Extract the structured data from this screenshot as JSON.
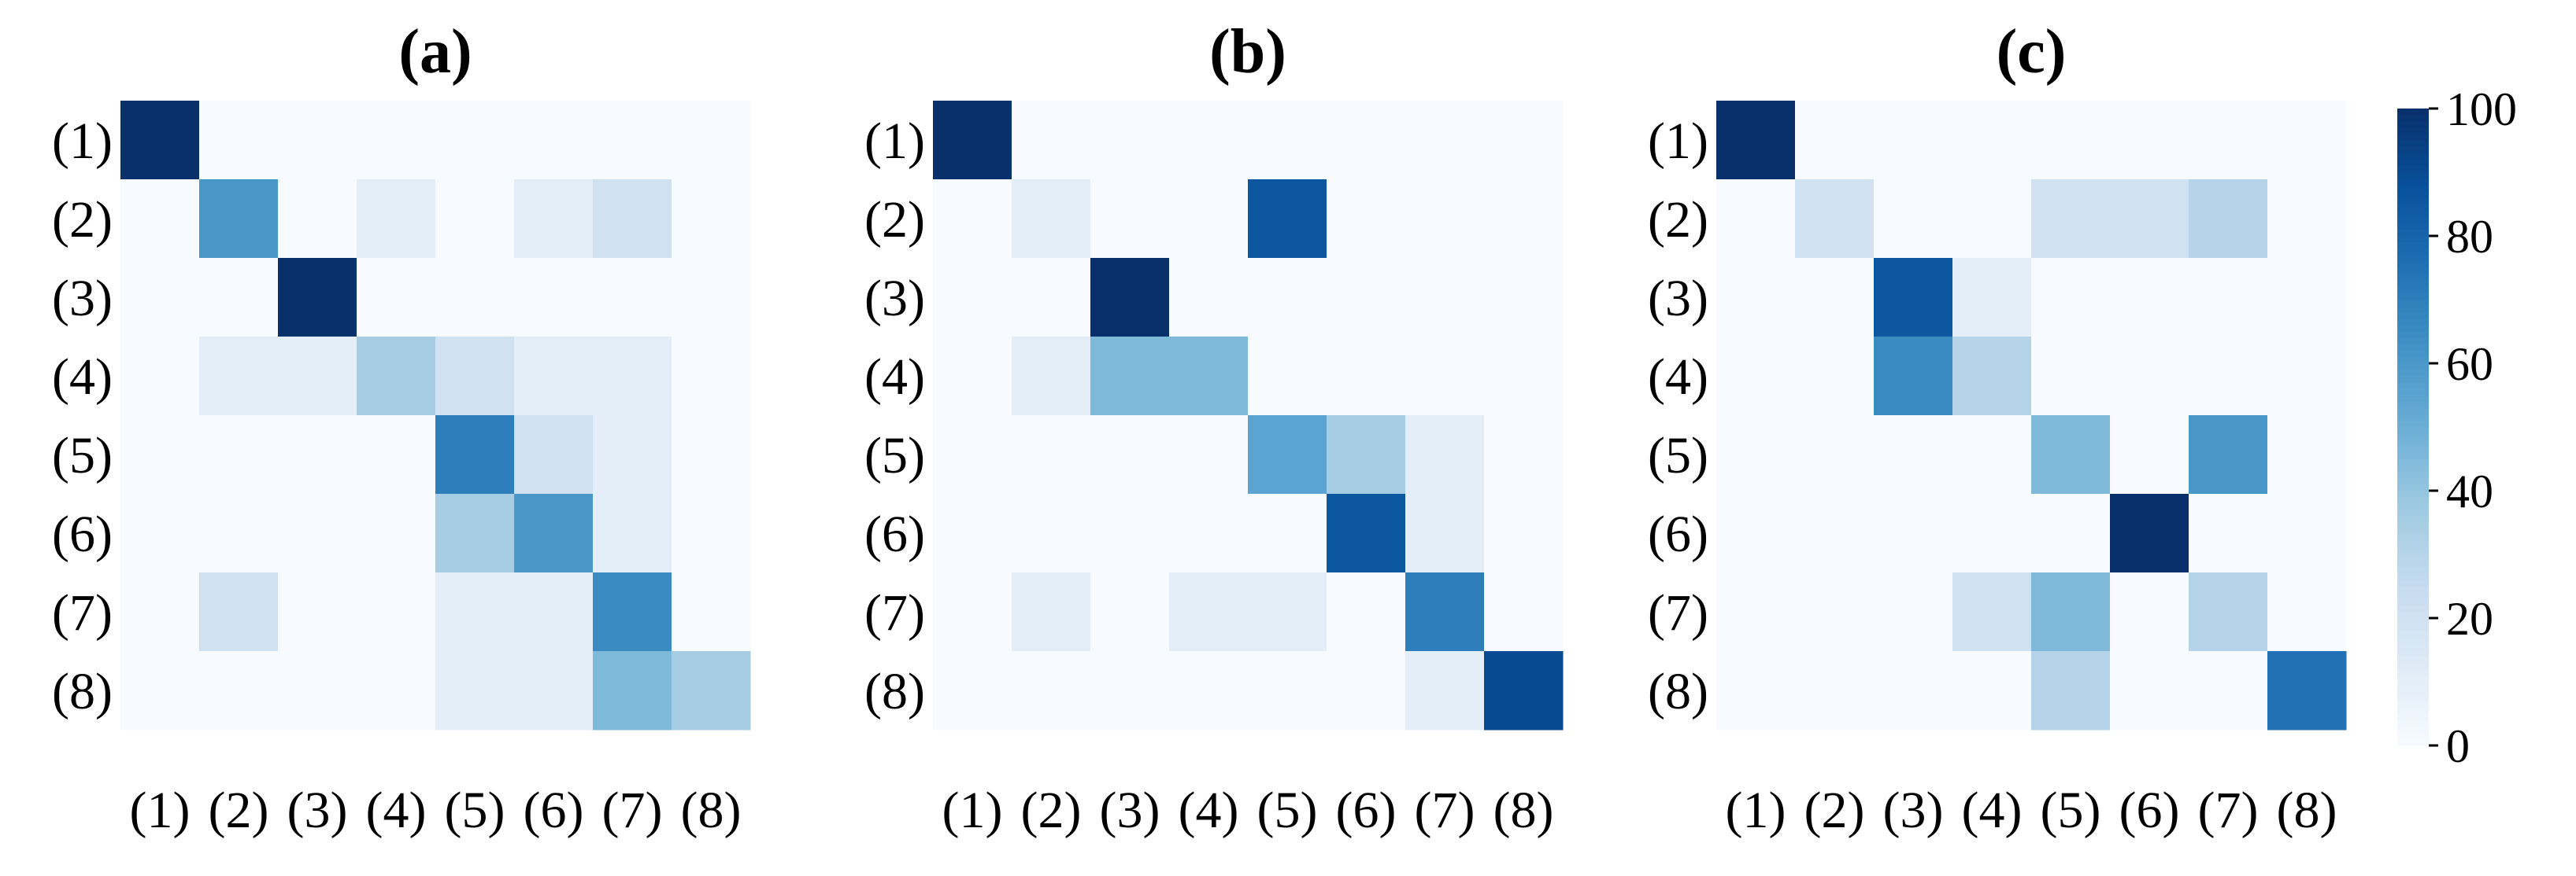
{
  "chart_data": [
    {
      "type": "heatmap",
      "title": "(a)",
      "x_categories": [
        "(1)",
        "(2)",
        "(3)",
        "(4)",
        "(5)",
        "(6)",
        "(7)",
        "(8)"
      ],
      "y_categories": [
        "(1)",
        "(2)",
        "(3)",
        "(4)",
        "(5)",
        "(6)",
        "(7)",
        "(8)"
      ],
      "values": [
        [
          100,
          0,
          0,
          0,
          0,
          0,
          0,
          0
        ],
        [
          0,
          60,
          0,
          10,
          0,
          10,
          20,
          0
        ],
        [
          0,
          0,
          100,
          0,
          0,
          0,
          0,
          0
        ],
        [
          0,
          10,
          10,
          35,
          20,
          10,
          10,
          0
        ],
        [
          0,
          0,
          0,
          0,
          70,
          20,
          10,
          0
        ],
        [
          0,
          0,
          0,
          0,
          35,
          60,
          10,
          0
        ],
        [
          0,
          20,
          0,
          0,
          10,
          10,
          65,
          0
        ],
        [
          0,
          0,
          0,
          0,
          10,
          10,
          45,
          35
        ]
      ],
      "vmin": 0,
      "vmax": 100,
      "colormap": "Blues"
    },
    {
      "type": "heatmap",
      "title": "(b)",
      "x_categories": [
        "(1)",
        "(2)",
        "(3)",
        "(4)",
        "(5)",
        "(6)",
        "(7)",
        "(8)"
      ],
      "y_categories": [
        "(1)",
        "(2)",
        "(3)",
        "(4)",
        "(5)",
        "(6)",
        "(7)",
        "(8)"
      ],
      "values": [
        [
          100,
          0,
          0,
          0,
          0,
          0,
          0,
          0
        ],
        [
          0,
          10,
          0,
          0,
          85,
          0,
          0,
          0
        ],
        [
          0,
          0,
          100,
          0,
          0,
          0,
          0,
          0
        ],
        [
          0,
          10,
          45,
          45,
          0,
          0,
          0,
          0
        ],
        [
          0,
          0,
          0,
          0,
          55,
          35,
          10,
          0
        ],
        [
          0,
          0,
          0,
          0,
          0,
          85,
          10,
          0
        ],
        [
          0,
          10,
          0,
          10,
          10,
          0,
          70,
          0
        ],
        [
          0,
          0,
          0,
          0,
          0,
          0,
          10,
          90
        ]
      ],
      "vmin": 0,
      "vmax": 100,
      "colormap": "Blues"
    },
    {
      "type": "heatmap",
      "title": "(c)",
      "x_categories": [
        "(1)",
        "(2)",
        "(3)",
        "(4)",
        "(5)",
        "(6)",
        "(7)",
        "(8)"
      ],
      "y_categories": [
        "(1)",
        "(2)",
        "(3)",
        "(4)",
        "(5)",
        "(6)",
        "(7)",
        "(8)"
      ],
      "values": [
        [
          100,
          0,
          0,
          0,
          0,
          0,
          0,
          0
        ],
        [
          0,
          20,
          0,
          0,
          20,
          20,
          30,
          0
        ],
        [
          0,
          0,
          85,
          10,
          0,
          0,
          0,
          0
        ],
        [
          0,
          0,
          65,
          30,
          0,
          0,
          0,
          0
        ],
        [
          0,
          0,
          0,
          0,
          45,
          0,
          60,
          0
        ],
        [
          0,
          0,
          0,
          0,
          0,
          100,
          0,
          0
        ],
        [
          0,
          0,
          0,
          20,
          45,
          0,
          30,
          0
        ],
        [
          0,
          0,
          0,
          0,
          30,
          0,
          0,
          75
        ]
      ],
      "vmin": 0,
      "vmax": 100,
      "colormap": "Blues"
    }
  ],
  "colorbar": {
    "ticks": [
      "0",
      "20",
      "40",
      "60",
      "80",
      "100"
    ],
    "tick_values": [
      0,
      20,
      40,
      60,
      80,
      100
    ]
  }
}
